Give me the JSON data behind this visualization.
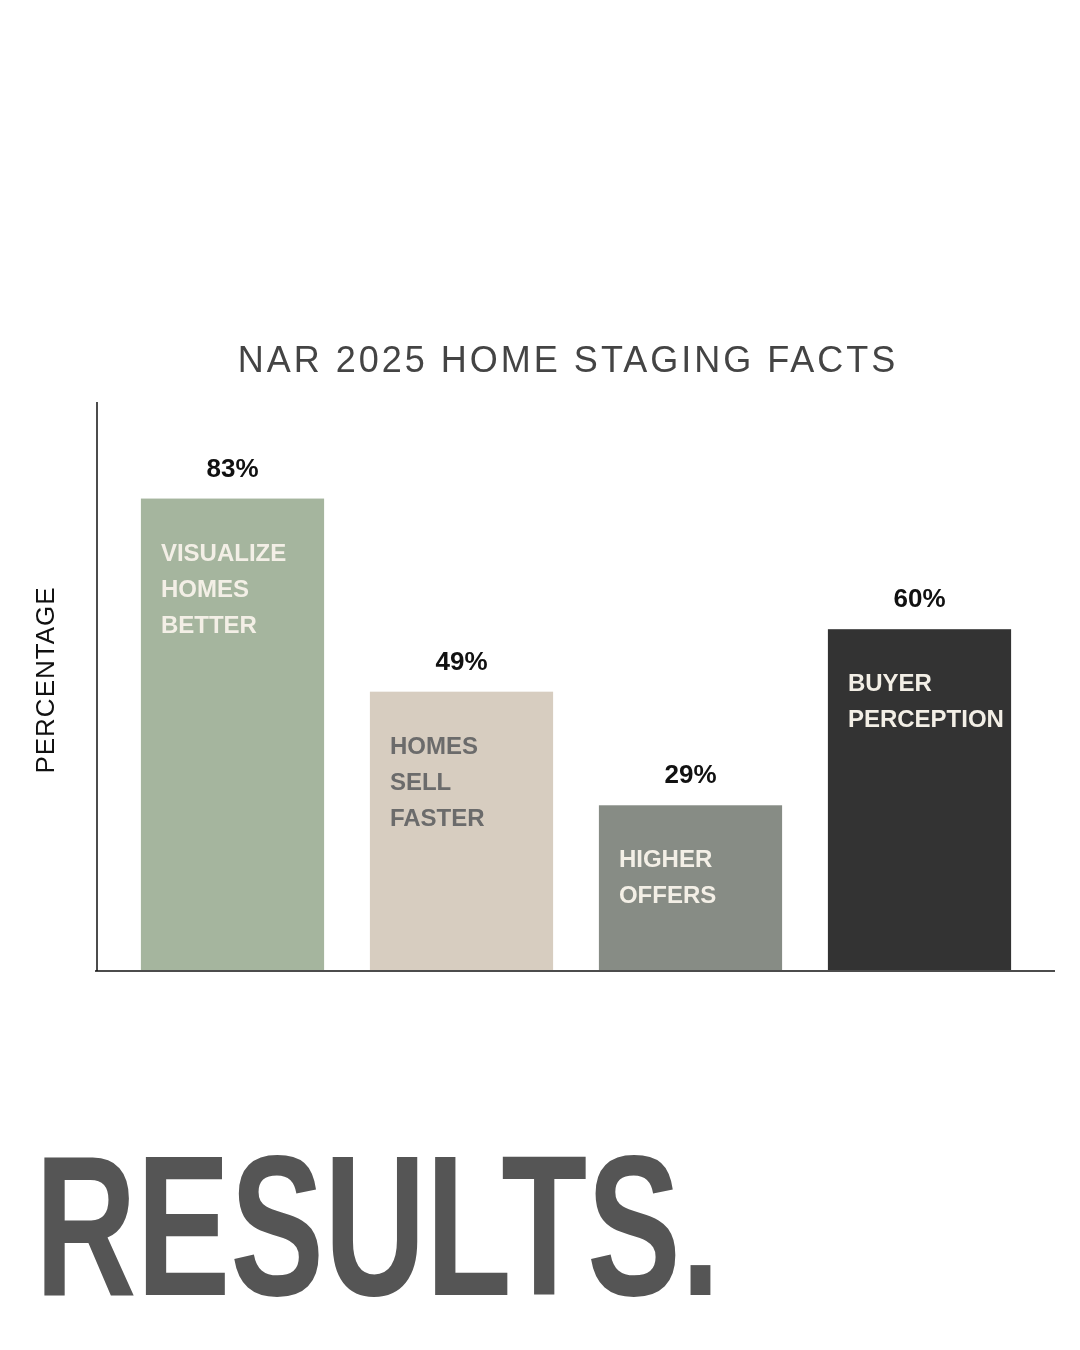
{
  "chart_data": {
    "type": "bar",
    "title": "NAR 2025 HOME STAGING FACTS",
    "ylabel": "PERCENTAGE",
    "categories": [
      "VISUALIZE HOMES BETTER",
      "HOMES SELL FASTER",
      "HIGHER OFFERS",
      "BUYER PERCEPTION"
    ],
    "values": [
      83,
      49,
      29,
      60
    ],
    "colors": [
      "#a5b59e",
      "#d7cdc0",
      "#878c85",
      "#333333"
    ],
    "value_labels": [
      "83%",
      "49%",
      "29%",
      "60%"
    ],
    "ylim": [
      0,
      100
    ],
    "annotations": [
      "RESULTS."
    ]
  }
}
